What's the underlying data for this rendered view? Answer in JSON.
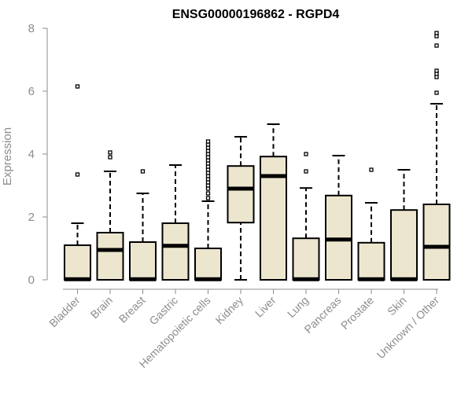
{
  "chart_data": {
    "type": "boxplot",
    "title": "ENSG00000196862 - RGPD4",
    "xlabel": "",
    "ylabel": "Expression",
    "ylim": [
      0,
      8
    ],
    "yticks": [
      "0",
      "2",
      "4",
      "6",
      "8"
    ],
    "box_fill": "#ede6cf",
    "categories": [
      "Bladder",
      "Brain",
      "Breast",
      "Gastric",
      "Hematopoietic cells",
      "Kidney",
      "Liver",
      "Lung",
      "Pancreas",
      "Prostate",
      "Skin",
      "Unknown / Other"
    ],
    "boxes": [
      {
        "label": "Bladder",
        "whisker_low": 0,
        "q1": 0,
        "median": 0.02,
        "q3": 1.1,
        "whisker_high": 1.8,
        "outliers": [
          3.35,
          6.15
        ]
      },
      {
        "label": "Brain",
        "whisker_low": 0,
        "q1": 0,
        "median": 0.95,
        "q3": 1.5,
        "whisker_high": 3.45,
        "outliers": [
          3.9,
          4.05
        ]
      },
      {
        "label": "Breast",
        "whisker_low": 0,
        "q1": 0,
        "median": 0.02,
        "q3": 1.2,
        "whisker_high": 2.75,
        "outliers": [
          3.45
        ]
      },
      {
        "label": "Gastric",
        "whisker_low": 0,
        "q1": 0,
        "median": 1.08,
        "q3": 1.8,
        "whisker_high": 3.65,
        "outliers": []
      },
      {
        "label": "Hematopoietic cells",
        "whisker_low": 0,
        "q1": 0,
        "median": 0.02,
        "q3": 1.0,
        "whisker_high": 2.5,
        "outliers": [
          2.6,
          2.75,
          2.9,
          3.0,
          3.1,
          3.2,
          3.3,
          3.4,
          3.5,
          3.6,
          3.7,
          3.8,
          3.9,
          4.0,
          4.1,
          4.2,
          4.3,
          4.4
        ]
      },
      {
        "label": "Kidney",
        "whisker_low": 0,
        "q1": 1.82,
        "median": 2.9,
        "q3": 3.62,
        "whisker_high": 4.55,
        "outliers": []
      },
      {
        "label": "Liver",
        "whisker_low": 0,
        "q1": 0,
        "median": 3.3,
        "q3": 3.92,
        "whisker_high": 4.95,
        "outliers": []
      },
      {
        "label": "Lung",
        "whisker_low": 0,
        "q1": 0,
        "median": 0.02,
        "q3": 1.32,
        "whisker_high": 2.92,
        "outliers": [
          3.45,
          4.0
        ]
      },
      {
        "label": "Pancreas",
        "whisker_low": 0,
        "q1": 0,
        "median": 1.28,
        "q3": 2.68,
        "whisker_high": 3.95,
        "outliers": []
      },
      {
        "label": "Prostate",
        "whisker_low": 0,
        "q1": 0,
        "median": 0.02,
        "q3": 1.18,
        "whisker_high": 2.45,
        "outliers": [
          3.5
        ]
      },
      {
        "label": "Skin",
        "whisker_low": 0,
        "q1": 0,
        "median": 0.02,
        "q3": 2.22,
        "whisker_high": 3.5,
        "outliers": []
      },
      {
        "label": "Unknown / Other",
        "whisker_low": 0,
        "q1": 0,
        "median": 1.05,
        "q3": 2.4,
        "whisker_high": 5.6,
        "outliers": [
          5.95,
          6.45,
          6.55,
          6.65,
          7.45,
          7.75,
          7.85
        ]
      }
    ]
  }
}
